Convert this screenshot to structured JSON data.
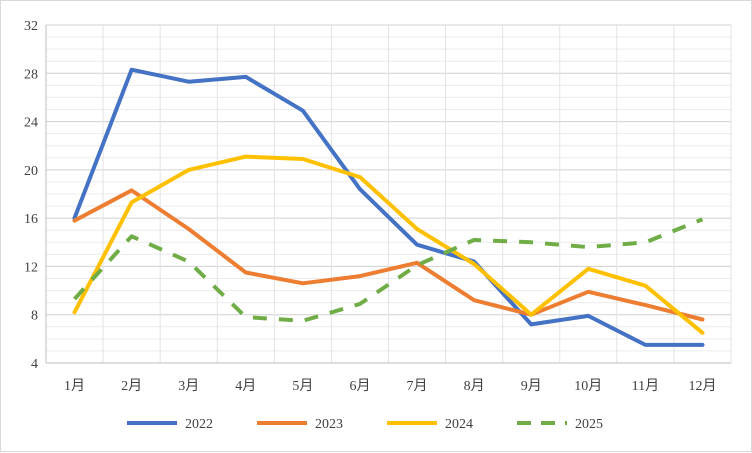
{
  "chart_data": {
    "type": "line",
    "title": "",
    "xlabel": "",
    "ylabel": "",
    "categories": [
      "1月",
      "2月",
      "3月",
      "4月",
      "5月",
      "6月",
      "7月",
      "8月",
      "9月",
      "10月",
      "11月",
      "12月"
    ],
    "ylim": [
      4,
      32
    ],
    "yticks": [
      4,
      8,
      12,
      16,
      20,
      24,
      28,
      32
    ],
    "grid": true,
    "legend": "bottom",
    "series": [
      {
        "name": "2022",
        "color": "#4472C4",
        "dashed": false,
        "values": [
          16.0,
          28.3,
          27.3,
          27.7,
          24.9,
          18.4,
          13.8,
          12.4,
          7.2,
          7.9,
          5.5,
          5.5
        ]
      },
      {
        "name": "2023",
        "color": "#ED7D31",
        "dashed": false,
        "values": [
          15.8,
          18.3,
          15.1,
          11.5,
          10.6,
          11.2,
          12.3,
          9.2,
          8.0,
          9.9,
          8.8,
          7.6
        ]
      },
      {
        "name": "2024",
        "color": "#FFC000",
        "dashed": false,
        "values": [
          8.2,
          17.3,
          20.0,
          21.1,
          20.9,
          19.4,
          15.1,
          12.2,
          8.0,
          11.8,
          10.4,
          6.5
        ]
      },
      {
        "name": "2025",
        "color": "#70AD47",
        "dashed": true,
        "values": [
          9.3,
          14.5,
          12.4,
          7.8,
          7.5,
          8.9,
          12.1,
          14.2,
          14.0,
          13.6,
          14.0,
          15.9
        ]
      }
    ]
  }
}
